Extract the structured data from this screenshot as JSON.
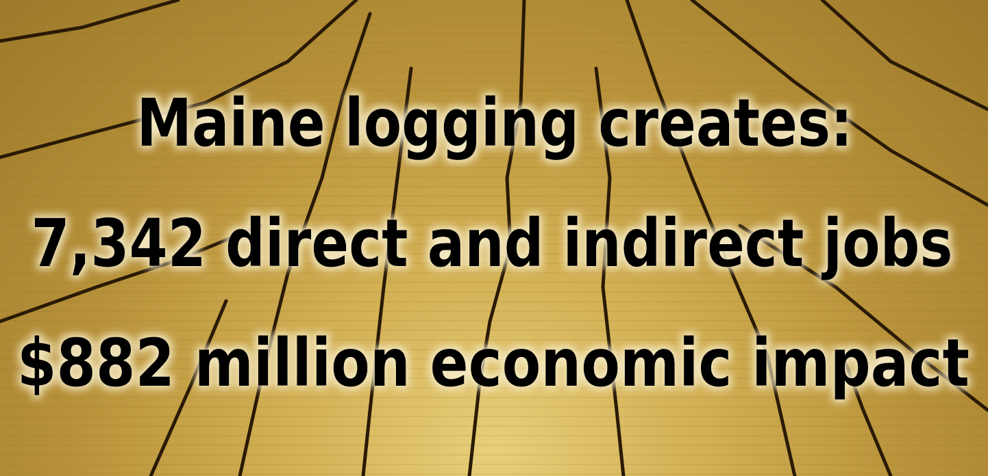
{
  "lines": [
    "Maine logging creates:",
    "7,342 direct and indirect jobs",
    "$882 million economic impact"
  ]
}
